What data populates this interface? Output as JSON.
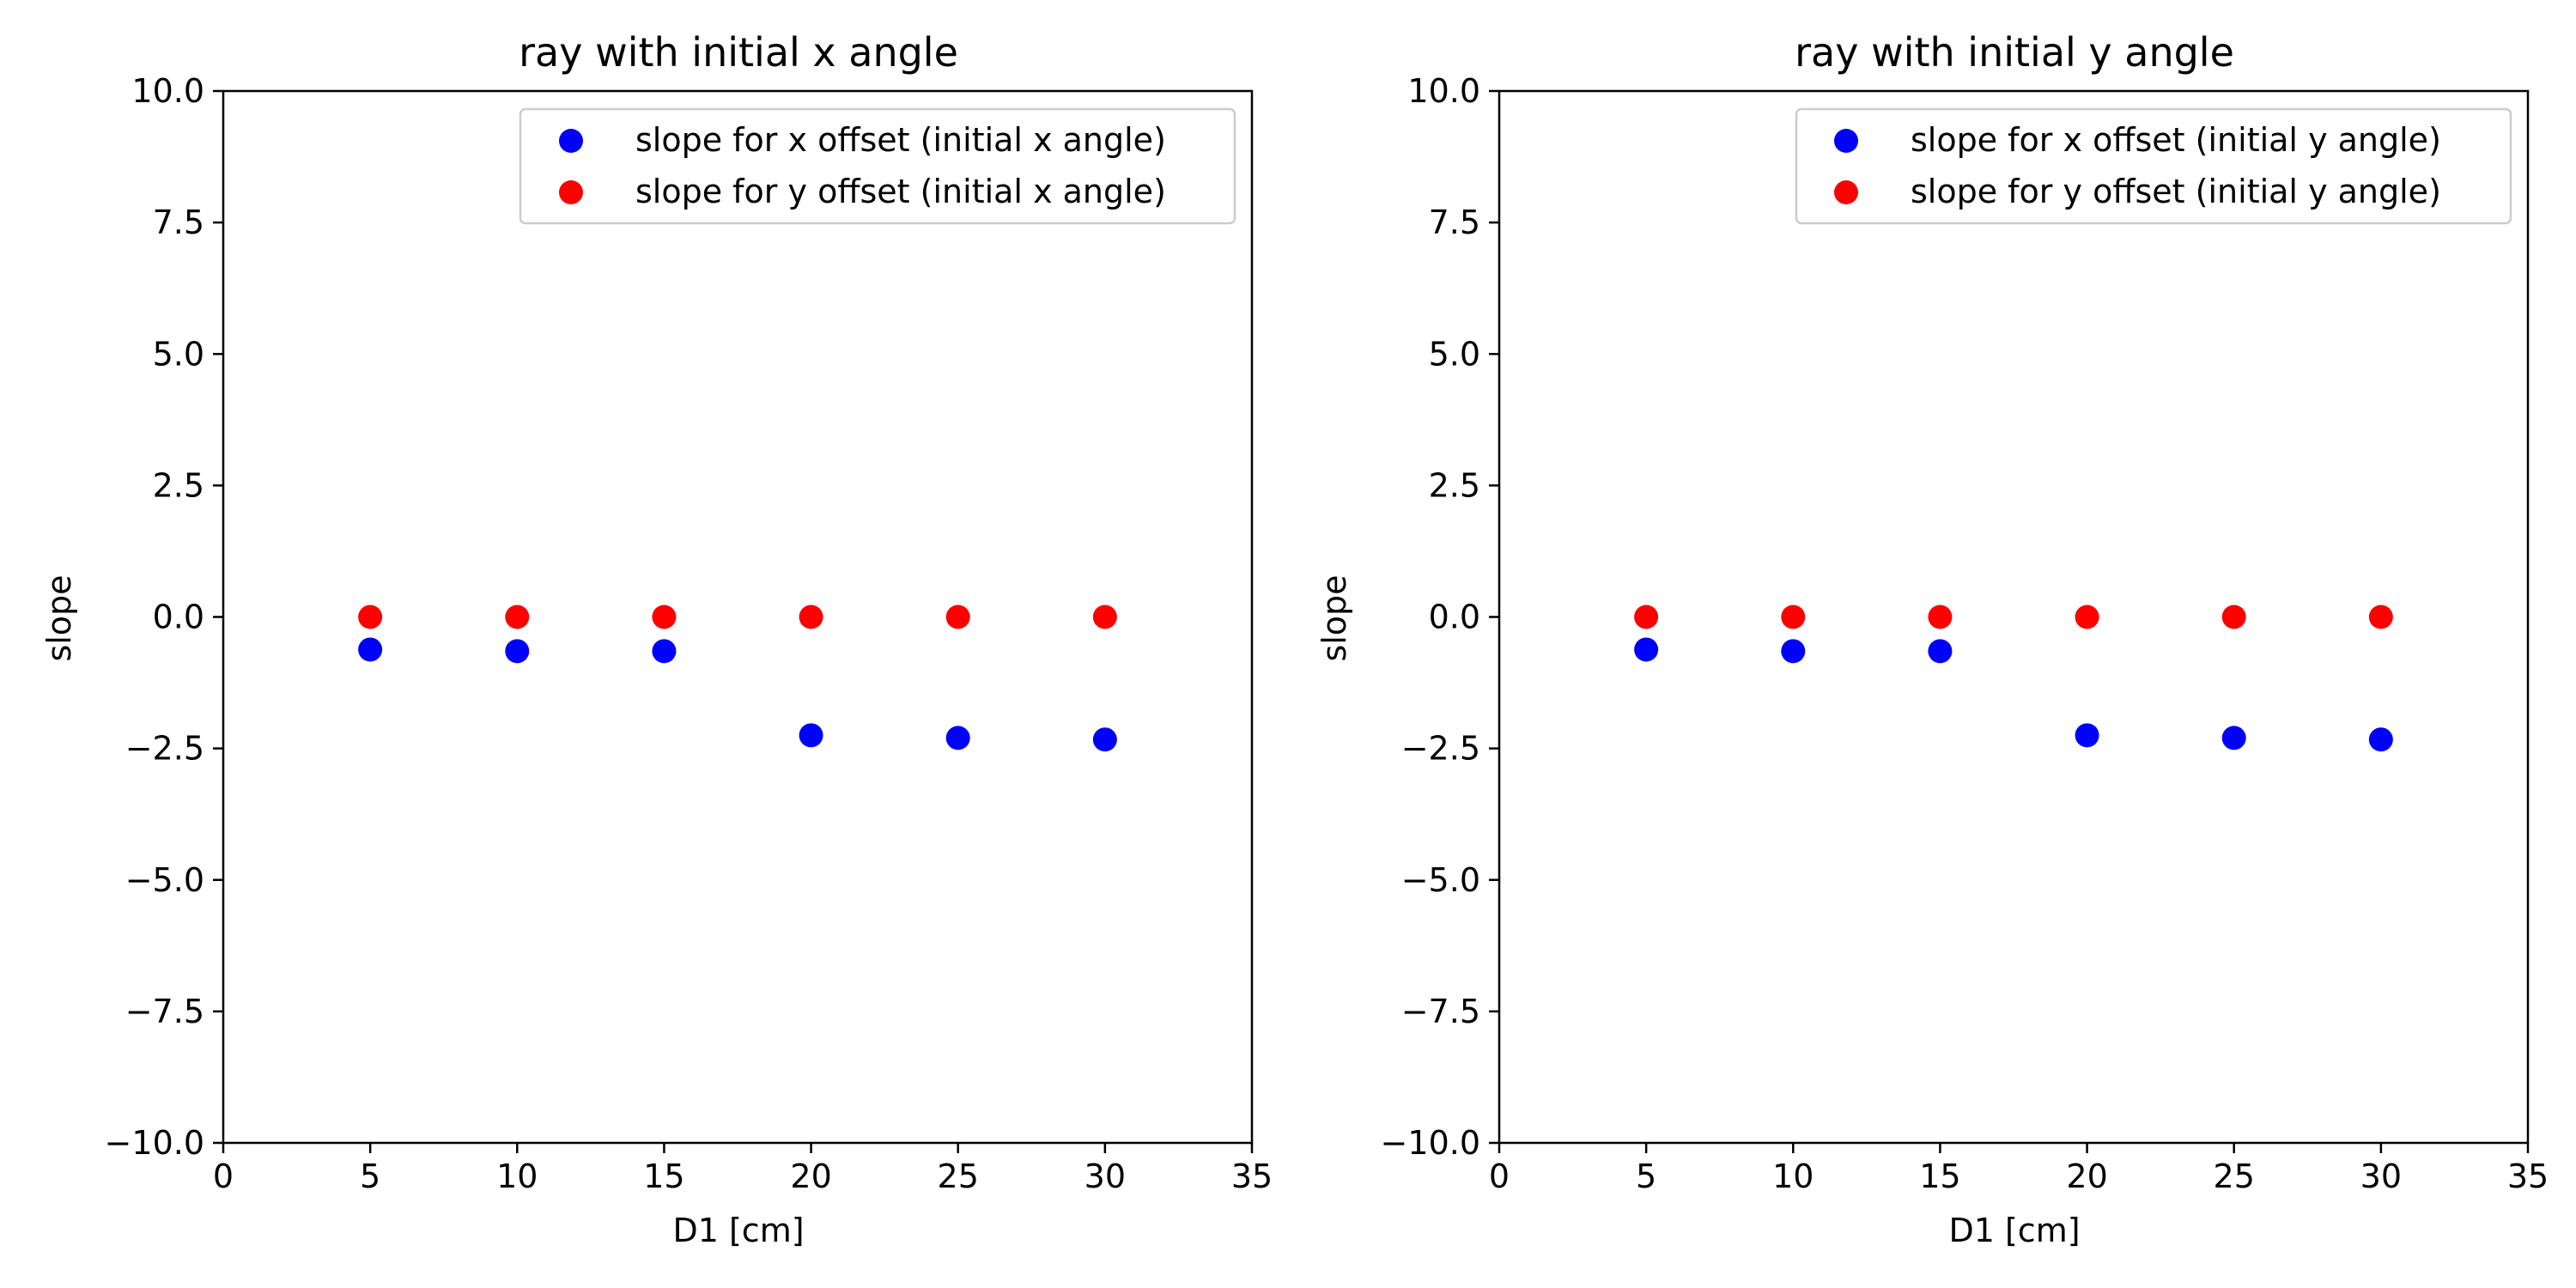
{
  "chart_data": [
    {
      "type": "scatter",
      "title": "ray with initial x angle",
      "xlabel": "D1 [cm]",
      "ylabel": "slope",
      "xlim": [
        0,
        35
      ],
      "ylim": [
        -10,
        10
      ],
      "xticks": [
        0,
        5,
        10,
        15,
        20,
        25,
        30,
        35
      ],
      "yticks": [
        -10.0,
        -7.5,
        -5.0,
        -2.5,
        0.0,
        2.5,
        5.0,
        7.5,
        10.0
      ],
      "xtick_labels": [
        "0",
        "5",
        "10",
        "15",
        "20",
        "25",
        "30",
        "35"
      ],
      "ytick_labels": [
        "−10.0",
        "−7.5",
        "−5.0",
        "−2.5",
        "0.0",
        "2.5",
        "5.0",
        "7.5",
        "10.0"
      ],
      "grid": false,
      "legend_position": "top-right",
      "x": [
        5,
        10,
        15,
        20,
        25,
        30
      ],
      "series": [
        {
          "name": "slope for x offset (initial x angle)",
          "color": "#0000ff",
          "values": [
            -0.62,
            -0.65,
            -0.65,
            -2.25,
            -2.3,
            -2.33
          ]
        },
        {
          "name": "slope for y offset (initial x angle)",
          "color": "#ff0000",
          "values": [
            0.0,
            0.0,
            0.0,
            0.0,
            0.0,
            0.0
          ]
        }
      ]
    },
    {
      "type": "scatter",
      "title": "ray with initial y angle",
      "xlabel": "D1 [cm]",
      "ylabel": "slope",
      "xlim": [
        0,
        35
      ],
      "ylim": [
        -10,
        10
      ],
      "xticks": [
        0,
        5,
        10,
        15,
        20,
        25,
        30,
        35
      ],
      "yticks": [
        -10.0,
        -7.5,
        -5.0,
        -2.5,
        0.0,
        2.5,
        5.0,
        7.5,
        10.0
      ],
      "xtick_labels": [
        "0",
        "5",
        "10",
        "15",
        "20",
        "25",
        "30",
        "35"
      ],
      "ytick_labels": [
        "−10.0",
        "−7.5",
        "−5.0",
        "−2.5",
        "0.0",
        "2.5",
        "5.0",
        "7.5",
        "10.0"
      ],
      "grid": false,
      "legend_position": "top-right",
      "x": [
        5,
        10,
        15,
        20,
        25,
        30
      ],
      "series": [
        {
          "name": "slope for x offset (initial y angle)",
          "color": "#0000ff",
          "values": [
            -0.62,
            -0.65,
            -0.65,
            -2.25,
            -2.3,
            -2.33
          ]
        },
        {
          "name": "slope for y offset (initial y angle)",
          "color": "#ff0000",
          "values": [
            0.0,
            0.0,
            0.0,
            0.0,
            0.0,
            0.0
          ]
        }
      ]
    }
  ]
}
